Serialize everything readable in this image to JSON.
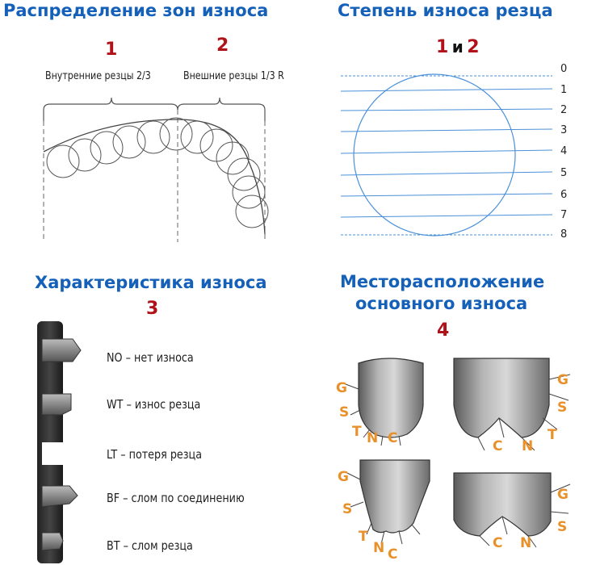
{
  "panel1": {
    "title": "Распределение зон износа",
    "num1": "1",
    "num2": "2",
    "label_inner": "Внутренние резцы 2/3",
    "label_outer": "Внешние резцы 1/3 R"
  },
  "panel2": {
    "title": "Степень износа резца",
    "num_a": "1",
    "num_and": "и",
    "num_b": "2",
    "levels": [
      "0",
      "1",
      "2",
      "3",
      "4",
      "5",
      "6",
      "7",
      "8"
    ]
  },
  "panel3": {
    "title": "Характеристика износа",
    "num": "3",
    "items": [
      "NO – нет износа",
      "WT – износ резца",
      "LT – потеря резца",
      "BF – слом по соединению",
      "BT – слом резца"
    ]
  },
  "panel4": {
    "title_line1": "Месторасположение",
    "title_line2": "основного износа",
    "num": "4",
    "cutters": [
      {
        "labels": [
          "G",
          "S",
          "T",
          "N",
          "C"
        ]
      },
      {
        "labels": [
          "G",
          "S",
          "T",
          "N",
          "C"
        ]
      },
      {
        "labels": [
          "G",
          "S",
          "T",
          "N",
          "C"
        ]
      },
      {
        "labels": [
          "G",
          "S",
          "N",
          "C"
        ]
      }
    ]
  },
  "colors": {
    "title_blue": "#1560b8",
    "number_red": "#b01219",
    "grade_line_blue": "#4a90d9",
    "zone_label_orange": "#e8912a"
  }
}
